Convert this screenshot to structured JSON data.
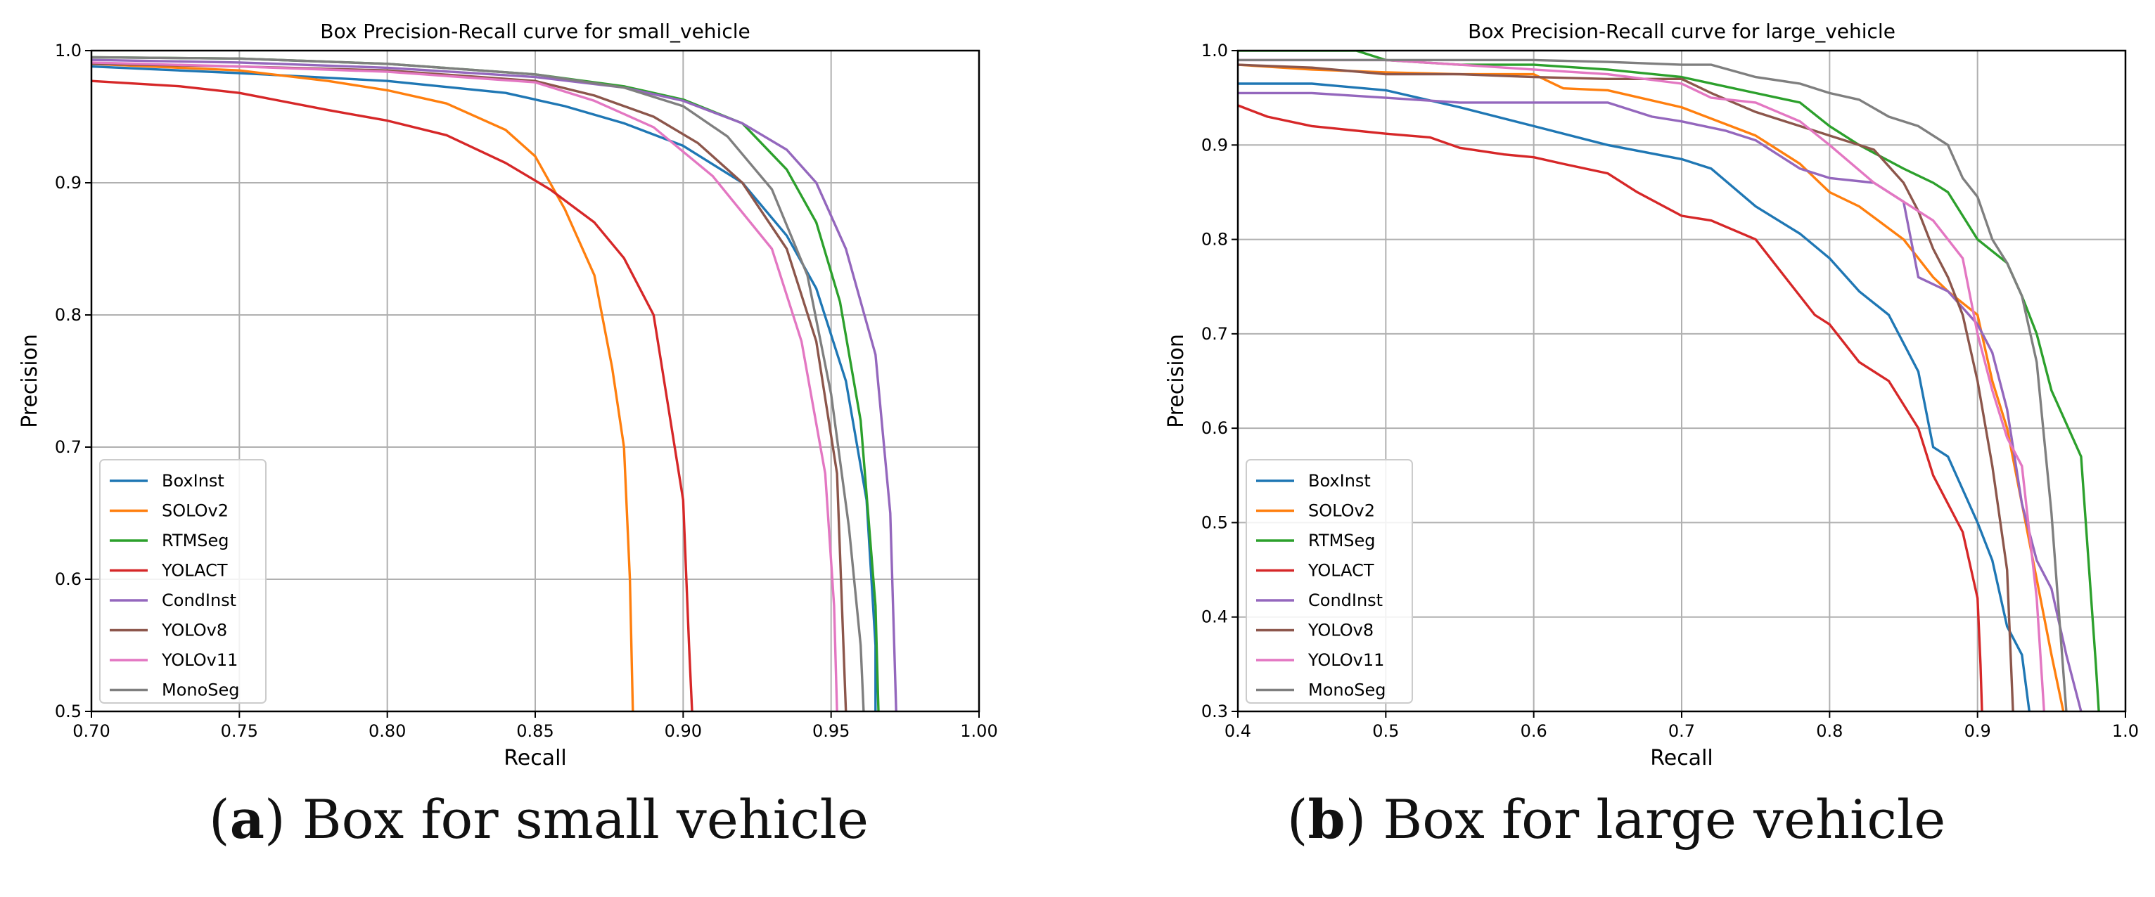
{
  "captions": [
    {
      "paren_open": "(",
      "letter": "a",
      "paren_close": ")",
      "text": " Box for small vehicle"
    },
    {
      "paren_open": "(",
      "letter": "b",
      "paren_close": ")",
      "text": " Box for large vehicle"
    }
  ],
  "colors": {
    "BoxInst": "#1f77b4",
    "SOLOv2": "#ff7f0e",
    "RTMSeg": "#2ca02c",
    "YOLACT": "#d62728",
    "CondInst": "#9467bd",
    "YOLOv8": "#8c564b",
    "YOLOv11": "#e377c2",
    "MonoSeg": "#7f7f7f"
  },
  "chart_data": [
    {
      "type": "line",
      "title": "Box Precision-Recall curve for small_vehicle",
      "xlabel": "Recall",
      "ylabel": "Precision",
      "xlim": [
        0.7,
        1.0
      ],
      "ylim": [
        0.5,
        1.0
      ],
      "xticks": [
        "0.70",
        "0.75",
        "0.80",
        "0.85",
        "0.90",
        "0.95",
        "1.00"
      ],
      "yticks": [
        "0.5",
        "0.6",
        "0.7",
        "0.8",
        "0.9",
        "1.0"
      ],
      "grid": true,
      "legend": "lower-left",
      "series": [
        {
          "name": "BoxInst",
          "x": [
            0.7,
            0.75,
            0.8,
            0.84,
            0.86,
            0.88,
            0.9,
            0.92,
            0.935,
            0.945,
            0.955,
            0.962,
            0.965,
            0.965
          ],
          "y": [
            0.988,
            0.983,
            0.977,
            0.968,
            0.958,
            0.945,
            0.928,
            0.9,
            0.86,
            0.82,
            0.75,
            0.66,
            0.55,
            0.5
          ]
        },
        {
          "name": "SOLOv2",
          "x": [
            0.7,
            0.75,
            0.78,
            0.8,
            0.82,
            0.84,
            0.85,
            0.86,
            0.87,
            0.876,
            0.88,
            0.882,
            0.883
          ],
          "y": [
            0.99,
            0.985,
            0.977,
            0.97,
            0.96,
            0.94,
            0.92,
            0.88,
            0.83,
            0.76,
            0.7,
            0.6,
            0.5
          ]
        },
        {
          "name": "RTMSeg",
          "x": [
            0.7,
            0.75,
            0.8,
            0.85,
            0.88,
            0.9,
            0.92,
            0.935,
            0.945,
            0.953,
            0.96,
            0.965,
            0.966
          ],
          "y": [
            0.995,
            0.994,
            0.99,
            0.982,
            0.973,
            0.963,
            0.945,
            0.91,
            0.87,
            0.81,
            0.72,
            0.58,
            0.5
          ]
        },
        {
          "name": "YOLACT",
          "x": [
            0.7,
            0.73,
            0.75,
            0.78,
            0.8,
            0.82,
            0.84,
            0.855,
            0.87,
            0.88,
            0.89,
            0.895,
            0.9,
            0.902,
            0.903
          ],
          "y": [
            0.977,
            0.973,
            0.968,
            0.955,
            0.947,
            0.936,
            0.915,
            0.895,
            0.87,
            0.843,
            0.8,
            0.73,
            0.66,
            0.55,
            0.5
          ]
        },
        {
          "name": "CondInst",
          "x": [
            0.7,
            0.75,
            0.8,
            0.85,
            0.88,
            0.9,
            0.92,
            0.935,
            0.945,
            0.955,
            0.965,
            0.97,
            0.972
          ],
          "y": [
            0.993,
            0.991,
            0.987,
            0.98,
            0.972,
            0.962,
            0.945,
            0.925,
            0.9,
            0.85,
            0.77,
            0.65,
            0.5
          ]
        },
        {
          "name": "YOLOv8",
          "x": [
            0.7,
            0.75,
            0.8,
            0.85,
            0.87,
            0.89,
            0.905,
            0.92,
            0.935,
            0.945,
            0.952,
            0.955
          ],
          "y": [
            0.99,
            0.988,
            0.985,
            0.977,
            0.966,
            0.95,
            0.93,
            0.9,
            0.85,
            0.78,
            0.68,
            0.5
          ]
        },
        {
          "name": "YOLOv11",
          "x": [
            0.7,
            0.75,
            0.8,
            0.85,
            0.87,
            0.89,
            0.91,
            0.93,
            0.94,
            0.948,
            0.951,
            0.952
          ],
          "y": [
            0.991,
            0.988,
            0.984,
            0.976,
            0.962,
            0.942,
            0.905,
            0.85,
            0.78,
            0.68,
            0.58,
            0.5
          ]
        },
        {
          "name": "MonoSeg",
          "x": [
            0.7,
            0.75,
            0.8,
            0.85,
            0.88,
            0.9,
            0.915,
            0.93,
            0.942,
            0.95,
            0.956,
            0.96,
            0.961
          ],
          "y": [
            0.995,
            0.994,
            0.99,
            0.982,
            0.972,
            0.958,
            0.935,
            0.895,
            0.83,
            0.74,
            0.64,
            0.55,
            0.5
          ]
        }
      ]
    },
    {
      "type": "line",
      "title": "Box Precision-Recall curve for large_vehicle",
      "xlabel": "Recall",
      "ylabel": "Precision",
      "xlim": [
        0.4,
        1.0
      ],
      "ylim": [
        0.3,
        1.0
      ],
      "xticks": [
        "0.4",
        "0.5",
        "0.6",
        "0.7",
        "0.8",
        "0.9",
        "1.0"
      ],
      "yticks": [
        "0.3",
        "0.4",
        "0.5",
        "0.6",
        "0.7",
        "0.8",
        "0.9",
        "1.0"
      ],
      "grid": true,
      "legend": "lower-left",
      "series": [
        {
          "name": "BoxInst",
          "x": [
            0.4,
            0.45,
            0.5,
            0.55,
            0.6,
            0.65,
            0.7,
            0.72,
            0.75,
            0.78,
            0.8,
            0.82,
            0.84,
            0.86,
            0.87,
            0.88,
            0.9,
            0.91,
            0.92,
            0.93,
            0.935
          ],
          "y": [
            0.965,
            0.965,
            0.958,
            0.94,
            0.92,
            0.9,
            0.885,
            0.875,
            0.835,
            0.806,
            0.78,
            0.745,
            0.72,
            0.66,
            0.58,
            0.57,
            0.5,
            0.46,
            0.39,
            0.36,
            0.3
          ]
        },
        {
          "name": "SOLOv2",
          "x": [
            0.4,
            0.45,
            0.5,
            0.55,
            0.6,
            0.62,
            0.65,
            0.7,
            0.75,
            0.78,
            0.8,
            0.82,
            0.85,
            0.87,
            0.88,
            0.9,
            0.91,
            0.92,
            0.93,
            0.94,
            0.95,
            0.958
          ],
          "y": [
            0.985,
            0.98,
            0.977,
            0.975,
            0.975,
            0.96,
            0.958,
            0.94,
            0.91,
            0.88,
            0.85,
            0.835,
            0.8,
            0.76,
            0.745,
            0.72,
            0.65,
            0.6,
            0.52,
            0.44,
            0.36,
            0.3
          ]
        },
        {
          "name": "RTMSeg",
          "x": [
            0.4,
            0.48,
            0.5,
            0.55,
            0.6,
            0.65,
            0.7,
            0.75,
            0.78,
            0.8,
            0.82,
            0.85,
            0.87,
            0.88,
            0.9,
            0.92,
            0.93,
            0.94,
            0.95,
            0.97,
            0.98,
            0.982
          ],
          "y": [
            1.0,
            1.0,
            0.99,
            0.985,
            0.985,
            0.98,
            0.972,
            0.955,
            0.945,
            0.92,
            0.9,
            0.875,
            0.86,
            0.85,
            0.8,
            0.775,
            0.74,
            0.7,
            0.64,
            0.57,
            0.35,
            0.3
          ]
        },
        {
          "name": "YOLACT",
          "x": [
            0.4,
            0.42,
            0.45,
            0.5,
            0.53,
            0.55,
            0.58,
            0.6,
            0.62,
            0.65,
            0.67,
            0.7,
            0.72,
            0.75,
            0.77,
            0.79,
            0.8,
            0.82,
            0.84,
            0.86,
            0.87,
            0.88,
            0.89,
            0.9,
            0.902,
            0.903
          ],
          "y": [
            0.942,
            0.93,
            0.92,
            0.912,
            0.908,
            0.897,
            0.89,
            0.887,
            0.88,
            0.87,
            0.85,
            0.825,
            0.82,
            0.8,
            0.76,
            0.72,
            0.71,
            0.67,
            0.65,
            0.6,
            0.55,
            0.52,
            0.49,
            0.42,
            0.35,
            0.3
          ]
        },
        {
          "name": "CondInst",
          "x": [
            0.4,
            0.45,
            0.5,
            0.55,
            0.6,
            0.65,
            0.68,
            0.7,
            0.73,
            0.75,
            0.78,
            0.8,
            0.83,
            0.85,
            0.86,
            0.88,
            0.9,
            0.91,
            0.92,
            0.93,
            0.94,
            0.95,
            0.96,
            0.97
          ],
          "y": [
            0.955,
            0.955,
            0.95,
            0.945,
            0.945,
            0.945,
            0.93,
            0.925,
            0.915,
            0.905,
            0.875,
            0.865,
            0.86,
            0.84,
            0.76,
            0.745,
            0.71,
            0.68,
            0.62,
            0.52,
            0.46,
            0.43,
            0.36,
            0.3
          ]
        },
        {
          "name": "YOLOv8",
          "x": [
            0.4,
            0.45,
            0.5,
            0.55,
            0.6,
            0.65,
            0.7,
            0.72,
            0.75,
            0.78,
            0.8,
            0.83,
            0.85,
            0.86,
            0.87,
            0.88,
            0.89,
            0.9,
            0.91,
            0.92,
            0.924
          ],
          "y": [
            0.985,
            0.982,
            0.975,
            0.975,
            0.972,
            0.97,
            0.97,
            0.955,
            0.935,
            0.92,
            0.91,
            0.895,
            0.86,
            0.83,
            0.79,
            0.76,
            0.72,
            0.65,
            0.56,
            0.45,
            0.3
          ]
        },
        {
          "name": "YOLOv11",
          "x": [
            0.4,
            0.45,
            0.5,
            0.55,
            0.6,
            0.65,
            0.7,
            0.72,
            0.75,
            0.78,
            0.8,
            0.83,
            0.85,
            0.87,
            0.88,
            0.89,
            0.9,
            0.91,
            0.92,
            0.93,
            0.94,
            0.945
          ],
          "y": [
            0.99,
            0.99,
            0.99,
            0.985,
            0.98,
            0.975,
            0.965,
            0.95,
            0.945,
            0.925,
            0.9,
            0.86,
            0.84,
            0.82,
            0.8,
            0.78,
            0.7,
            0.64,
            0.59,
            0.56,
            0.42,
            0.3
          ]
        },
        {
          "name": "MonoSeg",
          "x": [
            0.4,
            0.45,
            0.5,
            0.55,
            0.6,
            0.65,
            0.7,
            0.72,
            0.75,
            0.78,
            0.8,
            0.82,
            0.84,
            0.86,
            0.88,
            0.89,
            0.9,
            0.91,
            0.92,
            0.93,
            0.94,
            0.95,
            0.96
          ],
          "y": [
            0.99,
            0.99,
            0.99,
            0.99,
            0.99,
            0.988,
            0.985,
            0.985,
            0.972,
            0.965,
            0.955,
            0.948,
            0.93,
            0.92,
            0.9,
            0.865,
            0.845,
            0.8,
            0.775,
            0.74,
            0.67,
            0.51,
            0.3
          ]
        }
      ]
    }
  ]
}
